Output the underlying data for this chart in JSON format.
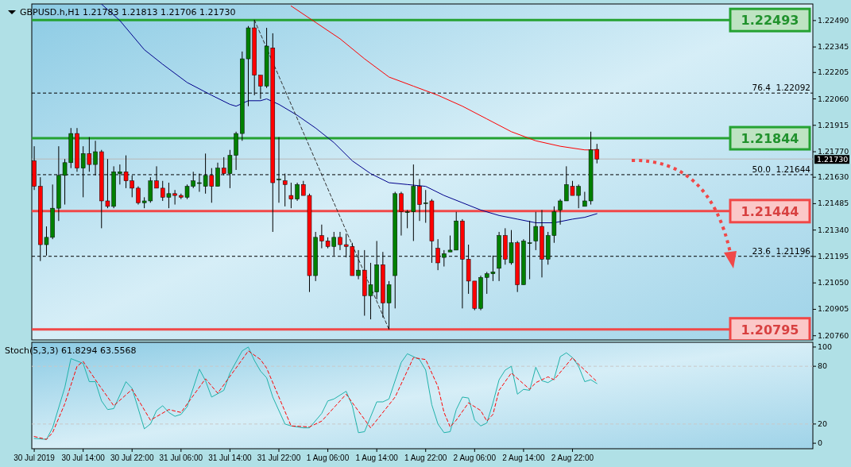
{
  "chart_data": [
    {
      "type": "candlestick",
      "title": "GBPUSD.h,H1  1.21783 1.21813 1.21706 1.21730",
      "tick_labels": "y",
      "x": [
        "2019-07-30T06:00",
        "2019-07-30T07:00",
        "2019-07-30T08:00",
        "2019-07-30T09:00",
        "2019-07-30T10:00",
        "2019-07-30T11:00",
        "2019-07-30T12:00",
        "2019-07-30T13:00",
        "2019-07-30T14:00",
        "2019-07-30T15:00",
        "2019-07-30T16:00",
        "2019-07-30T17:00",
        "2019-07-30T18:00",
        "2019-07-30T19:00",
        "2019-07-30T20:00",
        "2019-07-30T21:00",
        "2019-07-30T22:00",
        "2019-07-30T23:00",
        "2019-07-31T00:00",
        "2019-07-31T01:00",
        "2019-07-31T02:00",
        "2019-07-31T03:00",
        "2019-07-31T04:00",
        "2019-07-31T05:00",
        "2019-07-31T06:00",
        "2019-07-31T07:00",
        "2019-07-31T08:00",
        "2019-07-31T09:00",
        "2019-07-31T10:00",
        "2019-07-31T11:00",
        "2019-07-31T12:00",
        "2019-07-31T13:00",
        "2019-07-31T14:00",
        "2019-07-31T15:00",
        "2019-07-31T16:00",
        "2019-07-31T17:00",
        "2019-07-31T18:00",
        "2019-07-31T19:00",
        "2019-07-31T20:00",
        "2019-07-31T21:00",
        "2019-07-31T22:00",
        "2019-07-31T23:00",
        "2019-08-01T00:00",
        "2019-08-01T01:00",
        "2019-08-01T02:00",
        "2019-08-01T03:00",
        "2019-08-01T04:00",
        "2019-08-01T05:00",
        "2019-08-01T06:00",
        "2019-08-01T07:00",
        "2019-08-01T08:00",
        "2019-08-01T09:00",
        "2019-08-01T10:00",
        "2019-08-01T11:00",
        "2019-08-01T12:00",
        "2019-08-01T13:00",
        "2019-08-01T14:00",
        "2019-08-01T15:00",
        "2019-08-01T16:00",
        "2019-08-01T17:00",
        "2019-08-01T18:00",
        "2019-08-01T19:00",
        "2019-08-01T20:00",
        "2019-08-01T21:00",
        "2019-08-01T22:00",
        "2019-08-01T23:00",
        "2019-08-02T00:00",
        "2019-08-02T01:00",
        "2019-08-02T02:00",
        "2019-08-02T03:00",
        "2019-08-02T04:00",
        "2019-08-02T05:00",
        "2019-08-02T06:00",
        "2019-08-02T07:00",
        "2019-08-02T08:00",
        "2019-08-02T09:00",
        "2019-08-02T10:00",
        "2019-08-02T11:00",
        "2019-08-02T12:00",
        "2019-08-02T13:00",
        "2019-08-02T14:00",
        "2019-08-02T15:00",
        "2019-08-02T16:00",
        "2019-08-02T17:00",
        "2019-08-02T18:00",
        "2019-08-02T19:00",
        "2019-08-02T20:00",
        "2019-08-02T21:00",
        "2019-08-02T22:00",
        "2019-08-02T23:00",
        "2019-08-03T00:00",
        "2019-08-03T01:00",
        "2019-08-03T02:00"
      ],
      "ohlc": [
        [
          1.2172,
          1.218,
          1.2156,
          1.2158
        ],
        [
          1.2158,
          1.2163,
          1.2117,
          1.2126
        ],
        [
          1.2126,
          1.2136,
          1.212,
          1.213
        ],
        [
          1.213,
          1.2159,
          1.2129,
          1.2146
        ],
        [
          1.2146,
          1.218,
          1.2139,
          1.2164
        ],
        [
          1.2164,
          1.2173,
          1.2148,
          1.2171
        ],
        [
          1.2171,
          1.219,
          1.2168,
          1.2187
        ],
        [
          1.2187,
          1.219,
          1.2166,
          1.2168
        ],
        [
          1.2168,
          1.218,
          1.2152,
          1.2176
        ],
        [
          1.2176,
          1.2185,
          1.2166,
          1.217
        ],
        [
          1.217,
          1.2183,
          1.2164,
          1.2177
        ],
        [
          1.2177,
          1.2178,
          1.2135,
          1.215
        ],
        [
          1.215,
          1.2173,
          1.2146,
          1.2147
        ],
        [
          1.2147,
          1.2169,
          1.2146,
          1.2166
        ],
        [
          1.2165,
          1.217,
          1.2159,
          1.2166
        ],
        [
          1.2166,
          1.2175,
          1.2157,
          1.2161
        ],
        [
          1.2161,
          1.2164,
          1.2152,
          1.2157
        ],
        [
          1.2157,
          1.2158,
          1.2148,
          1.2149
        ],
        [
          1.2149,
          1.2152,
          1.2146,
          1.215
        ],
        [
          1.215,
          1.2163,
          1.2149,
          1.2161
        ],
        [
          1.2161,
          1.2169,
          1.2157,
          1.2157
        ],
        [
          1.2157,
          1.2161,
          1.215,
          1.2152
        ],
        [
          1.2152,
          1.216,
          1.2146,
          1.2154
        ],
        [
          1.2154,
          1.2156,
          1.2148,
          1.2153
        ],
        [
          1.2153,
          1.2154,
          1.2151,
          1.2152
        ],
        [
          1.2152,
          1.2159,
          1.2151,
          1.2158
        ],
        [
          1.2158,
          1.2166,
          1.2157,
          1.2161
        ],
        [
          1.216,
          1.2165,
          1.2155,
          1.216
        ],
        [
          1.2158,
          1.2176,
          1.2154,
          1.2164
        ],
        [
          1.2164,
          1.2168,
          1.2149,
          1.2158
        ],
        [
          1.2158,
          1.2171,
          1.2158,
          1.2168
        ],
        [
          1.2168,
          1.2174,
          1.2164,
          1.2165
        ],
        [
          1.2165,
          1.2178,
          1.2157,
          1.2175
        ],
        [
          1.2175,
          1.2188,
          1.2167,
          1.2187
        ],
        [
          1.2187,
          1.2232,
          1.2183,
          1.2228
        ],
        [
          1.2228,
          1.2246,
          1.2202,
          1.2245
        ],
        [
          1.2245,
          1.22493,
          1.2208,
          1.2219
        ],
        [
          1.2219,
          1.2219,
          1.2206,
          1.2213
        ],
        [
          1.2213,
          1.2245,
          1.2212,
          1.2235
        ],
        [
          1.2234,
          1.2242,
          1.2133,
          1.216
        ],
        [
          1.2162,
          1.2185,
          1.2149,
          1.2162
        ],
        [
          1.2161,
          1.2165,
          1.2147,
          1.2159
        ],
        [
          1.2153,
          1.216,
          1.2146,
          1.2151
        ],
        [
          1.2151,
          1.216,
          1.215,
          1.2159
        ],
        [
          1.2159,
          1.2161,
          1.2153,
          1.2153
        ],
        [
          1.2153,
          1.2154,
          1.21,
          1.2109
        ],
        [
          1.2109,
          1.2133,
          1.2106,
          1.213
        ],
        [
          1.2131,
          1.2137,
          1.2124,
          1.2128
        ],
        [
          1.2128,
          1.213,
          1.2124,
          1.2125
        ],
        [
          1.2125,
          1.2133,
          1.212,
          1.213
        ],
        [
          1.213,
          1.2133,
          1.2123,
          1.2126
        ],
        [
          1.2126,
          1.2132,
          1.2119,
          1.2125
        ],
        [
          1.2125,
          1.2127,
          1.2109,
          1.2109
        ],
        [
          1.2109,
          1.2123,
          1.2107,
          1.2112
        ],
        [
          1.2112,
          1.2123,
          1.2087,
          1.2098
        ],
        [
          1.2098,
          1.2116,
          1.2085,
          1.2104
        ],
        [
          1.21,
          1.2128,
          1.2096,
          1.2115
        ],
        [
          1.2115,
          1.2122,
          1.2086,
          1.2094
        ],
        [
          1.2094,
          1.2106,
          1.20795,
          1.2104
        ],
        [
          1.2109,
          1.2155,
          1.2091,
          1.2154
        ],
        [
          1.2154,
          1.2155,
          1.2131,
          1.2144
        ],
        [
          1.2144,
          1.2145,
          1.2135,
          1.2144
        ],
        [
          1.2144,
          1.217,
          1.2128,
          1.2158
        ],
        [
          1.2158,
          1.2162,
          1.2139,
          1.2148
        ],
        [
          1.2149,
          1.2156,
          1.2138,
          1.2149
        ],
        [
          1.215,
          1.2151,
          1.2116,
          1.2128
        ],
        [
          1.2124,
          1.2129,
          1.2112,
          1.2116
        ],
        [
          1.2119,
          1.2123,
          1.2114,
          1.2121
        ],
        [
          1.2122,
          1.2131,
          1.2122,
          1.2123
        ],
        [
          1.2123,
          1.2144,
          1.2123,
          1.2139
        ],
        [
          1.2139,
          1.214,
          1.2091,
          1.2118
        ],
        [
          1.2118,
          1.2126,
          1.2099,
          1.2106
        ],
        [
          1.2106,
          1.2106,
          1.209,
          1.2091
        ],
        [
          1.2091,
          1.2109,
          1.209,
          1.2108
        ],
        [
          1.2108,
          1.2111,
          1.2099,
          1.211
        ],
        [
          1.211,
          1.212,
          1.2106,
          1.2111
        ],
        [
          1.2113,
          1.2133,
          1.2106,
          1.2131
        ],
        [
          1.2131,
          1.2135,
          1.2115,
          1.2118
        ],
        [
          1.2116,
          1.2134,
          1.2115,
          1.2127
        ],
        [
          1.2127,
          1.2128,
          1.21,
          1.2104
        ],
        [
          1.2104,
          1.2129,
          1.2104,
          1.2128
        ],
        [
          1.2127,
          1.2139,
          1.2107,
          1.2127
        ],
        [
          1.2128,
          1.2144,
          1.2123,
          1.2136
        ],
        [
          1.2136,
          1.2145,
          1.2108,
          1.2118
        ],
        [
          1.2118,
          1.2133,
          1.2115,
          1.2131
        ],
        [
          1.2131,
          1.2147,
          1.2127,
          1.2144
        ],
        [
          1.2145,
          1.2151,
          1.2137,
          1.215
        ],
        [
          1.215,
          1.2169,
          1.215,
          1.2159
        ],
        [
          1.2158,
          1.2161,
          1.2153,
          1.2153
        ],
        [
          1.2153,
          1.2159,
          1.2146,
          1.2158
        ],
        [
          1.2147,
          1.2155,
          1.2147,
          1.215
        ],
        [
          1.215,
          1.2188,
          1.2148,
          1.2178
        ],
        [
          1.21783,
          1.21813,
          1.21706,
          1.2173
        ]
      ],
      "series": [
        {
          "type": "line",
          "color": "#00008b",
          "x": [
            "2019-07-30T17:00",
            "2019-07-30T20:00",
            "2019-07-31T00:00",
            "2019-07-31T03:00",
            "2019-07-31T07:00",
            "2019-07-31T11:00",
            "2019-07-31T14:00",
            "2019-07-31T15:00",
            "2019-07-31T17:00",
            "2019-07-31T19:00",
            "2019-07-31T20:00",
            "2019-07-31T22:00",
            "2019-08-01T01:00",
            "2019-08-01T04:00",
            "2019-08-01T07:00",
            "2019-08-01T10:00",
            "2019-08-01T13:00",
            "2019-08-01T16:00",
            "2019-08-01T19:00",
            "2019-08-01T22:00",
            "2019-08-02T01:00",
            "2019-08-02T04:00",
            "2019-08-02T07:00",
            "2019-08-02T10:00",
            "2019-08-02T13:00",
            "2019-08-02T16:00",
            "2019-08-02T19:00",
            "2019-08-02T22:00",
            "2019-08-03T00:00",
            "2019-08-03T02:00"
          ],
          "values": [
            1.2258,
            1.2249,
            1.2233,
            1.2225,
            1.2215,
            1.2208,
            1.2203,
            1.2202,
            1.2205,
            1.2205,
            1.2206,
            1.2203,
            1.2197,
            1.219,
            1.2182,
            1.2172,
            1.2165,
            1.216,
            1.2159,
            1.2158,
            1.2153,
            1.2149,
            1.2145,
            1.2142,
            1.214,
            1.2138,
            1.2138,
            1.214,
            1.2141,
            1.2143
          ]
        },
        {
          "type": "line",
          "color": "#ff0000",
          "x": [
            "2019-08-01T00:00",
            "2019-08-01T04:00",
            "2019-08-01T08:00",
            "2019-08-01T12:00",
            "2019-08-01T16:00",
            "2019-08-01T20:00",
            "2019-08-02T00:00",
            "2019-08-02T04:00",
            "2019-08-02T08:00",
            "2019-08-02T12:00",
            "2019-08-02T16:00",
            "2019-08-02T20:00",
            "2019-08-03T00:00",
            "2019-08-03T02:00"
          ],
          "values": [
            1.2257,
            1.2248,
            1.2239,
            1.2228,
            1.2218,
            1.2213,
            1.2208,
            1.2202,
            1.2195,
            1.2188,
            1.2183,
            1.218,
            1.2178,
            1.2178
          ]
        },
        {
          "type": "line",
          "color": "#303030",
          "line_style": "dashed",
          "x": [
            "2019-07-31T18:00",
            "2019-08-01T16:00"
          ],
          "values": [
            1.22493,
            1.20795
          ]
        }
      ],
      "xlim": [
        "2019-07-30T05:36",
        "2019-08-04T13:18"
      ],
      "ylim": [
        1.20737,
        1.22581
      ],
      "yticks": [
        {
          "value": 1.2249,
          "label": "1.22490"
        },
        {
          "value": 1.22345,
          "label": "1.22345"
        },
        {
          "value": 1.22205,
          "label": "1.22205"
        },
        {
          "value": 1.2206,
          "label": "1.22060"
        },
        {
          "value": 1.21915,
          "label": "1.21915"
        },
        {
          "value": 1.2177,
          "label": "1.21770"
        },
        {
          "value": 1.2163,
          "label": "1.21630"
        },
        {
          "value": 1.21485,
          "label": "1.21485"
        },
        {
          "value": 1.2134,
          "label": "1.21340"
        },
        {
          "value": 1.21195,
          "label": "1.21195"
        },
        {
          "value": 1.2105,
          "label": "1.21050"
        },
        {
          "value": 1.20905,
          "label": "1.20905"
        },
        {
          "value": 1.2076,
          "label": "1.20760"
        }
      ],
      "ref_lines": [
        {
          "axis": "y",
          "value": 1.2173,
          "color": "#b8b8b8",
          "line_style": "solid"
        },
        {
          "axis": "y",
          "value": 1.22092,
          "label": "76.4  1.22092",
          "color": "#000000",
          "line_style": "dashed"
        },
        {
          "axis": "y",
          "value": 1.21644,
          "label": "50.0  1.21644",
          "color": "#000000",
          "line_style": "dashed"
        },
        {
          "axis": "y",
          "value": 1.21196,
          "label": "23.6  1.21196",
          "color": "#000000",
          "line_style": "dashed"
        },
        {
          "axis": "y",
          "value": 1.22493,
          "label": "1.22493",
          "color": "#25a232",
          "line_style": "solid"
        },
        {
          "axis": "y",
          "value": 1.21844,
          "label": "1.21844",
          "color": "#25a232",
          "line_style": "solid"
        },
        {
          "axis": "y",
          "value": 1.21444,
          "label": "1.21444",
          "color": "#f04848",
          "line_style": "solid"
        },
        {
          "axis": "y",
          "value": 1.20795,
          "label": "1.20795",
          "color": "#f04848",
          "line_style": "solid"
        }
      ],
      "annotations": [
        "1.21730"
      ]
    },
    {
      "type": "line",
      "title": "Stoch(5,3,3) 61.8294 63.5568",
      "series": [
        {
          "color": "#20b2aa",
          "x": [
            "2019-07-30T06:00",
            "2019-07-30T08:00",
            "2019-07-30T09:00",
            "2019-07-30T11:00",
            "2019-07-30T12:00",
            "2019-07-30T14:00",
            "2019-07-30T15:00",
            "2019-07-30T16:00",
            "2019-07-30T17:00",
            "2019-07-30T18:00",
            "2019-07-30T19:00",
            "2019-07-30T21:00",
            "2019-07-30T22:00",
            "2019-07-31T00:00",
            "2019-07-31T01:00",
            "2019-07-31T02:00",
            "2019-07-31T03:00",
            "2019-07-31T04:00",
            "2019-07-31T05:00",
            "2019-07-31T06:00",
            "2019-07-31T07:00",
            "2019-07-31T09:00",
            "2019-07-31T10:00",
            "2019-07-31T11:00",
            "2019-07-31T13:00",
            "2019-07-31T14:00",
            "2019-07-31T16:00",
            "2019-07-31T17:00",
            "2019-07-31T18:00",
            "2019-07-31T19:00",
            "2019-07-31T20:00",
            "2019-07-31T21:00",
            "2019-07-31T23:00",
            "2019-08-01T00:00",
            "2019-08-01T02:00",
            "2019-08-01T03:00",
            "2019-08-01T05:00",
            "2019-08-01T06:00",
            "2019-08-01T07:00",
            "2019-08-01T09:00",
            "2019-08-01T10:00",
            "2019-08-01T11:00",
            "2019-08-01T12:00",
            "2019-08-01T14:00",
            "2019-08-01T15:00",
            "2019-08-01T16:00",
            "2019-08-01T18:00",
            "2019-08-01T19:00",
            "2019-08-01T21:00",
            "2019-08-01T22:00",
            "2019-08-01T23:00",
            "2019-08-02T00:00",
            "2019-08-02T01:00",
            "2019-08-02T02:00",
            "2019-08-02T03:00",
            "2019-08-02T04:00",
            "2019-08-02T05:00",
            "2019-08-02T06:00",
            "2019-08-02T07:00",
            "2019-08-02T08:00",
            "2019-08-02T09:00",
            "2019-08-02T10:00",
            "2019-08-02T11:00",
            "2019-08-02T12:00",
            "2019-08-02T13:00",
            "2019-08-02T14:00",
            "2019-08-02T15:00",
            "2019-08-02T16:00",
            "2019-08-02T17:00",
            "2019-08-02T18:00",
            "2019-08-02T19:00",
            "2019-08-02T20:00",
            "2019-08-02T21:00",
            "2019-08-02T22:00",
            "2019-08-02T23:00",
            "2019-08-03T00:00",
            "2019-08-03T01:00",
            "2019-08-03T02:00"
          ],
          "values": [
            5,
            4,
            16,
            58,
            88,
            83,
            64,
            64,
            44,
            35,
            36,
            64,
            57,
            15,
            20,
            34,
            39,
            32,
            28,
            30,
            38,
            77,
            65,
            48,
            55,
            73,
            96,
            100,
            86,
            75,
            68,
            48,
            20,
            18,
            16,
            16,
            31,
            44,
            46,
            54,
            39,
            11,
            12,
            43,
            43,
            46,
            84,
            93,
            87,
            76,
            40,
            20,
            11,
            12,
            35,
            48,
            47,
            24,
            18,
            21,
            42,
            66,
            76,
            80,
            51,
            56,
            55,
            79,
            65,
            63,
            67,
            90,
            94,
            89,
            80,
            64,
            66,
            62
          ]
        },
        {
          "color": "#ff0000",
          "line_style": "dashed",
          "x": [
            "2019-07-30T06:00",
            "2019-07-30T08:00",
            "2019-07-30T09:00",
            "2019-07-30T11:00",
            "2019-07-30T13:00",
            "2019-07-30T14:00",
            "2019-07-30T16:00",
            "2019-07-30T19:00",
            "2019-07-30T22:00",
            "2019-07-31T01:00",
            "2019-07-31T04:00",
            "2019-07-31T06:00",
            "2019-07-31T10:00",
            "2019-07-31T12:00",
            "2019-07-31T16:00",
            "2019-07-31T17:00",
            "2019-07-31T19:00",
            "2019-07-31T20:00",
            "2019-07-31T22:00",
            "2019-08-01T00:00",
            "2019-08-01T03:00",
            "2019-08-01T05:00",
            "2019-08-01T09:00",
            "2019-08-01T13:00",
            "2019-08-01T17:00",
            "2019-08-01T20:00",
            "2019-08-01T22:00",
            "2019-08-02T00:00",
            "2019-08-02T01:00",
            "2019-08-02T02:00",
            "2019-08-02T03:00",
            "2019-08-02T05:00",
            "2019-08-02T07:00",
            "2019-08-02T08:00",
            "2019-08-02T09:00",
            "2019-08-02T10:00",
            "2019-08-02T12:00",
            "2019-08-02T15:00",
            "2019-08-02T16:00",
            "2019-08-02T18:00",
            "2019-08-02T19:00",
            "2019-08-02T22:00",
            "2019-08-02T23:00",
            "2019-08-03T02:00"
          ],
          "values": [
            7,
            4,
            11,
            41,
            80,
            85,
            66,
            39,
            56,
            24,
            35,
            32,
            67,
            52,
            87,
            96,
            87,
            78,
            48,
            18,
            17,
            23,
            51,
            16,
            48,
            89,
            87,
            59,
            32,
            17,
            24,
            42,
            34,
            23,
            30,
            55,
            73,
            56,
            63,
            69,
            66,
            89,
            82,
            64
          ]
        }
      ],
      "xlim": [
        "2019-07-30T05:36",
        "2019-08-04T13:18"
      ],
      "ylim": [
        -5.7,
        104.9
      ],
      "yticks": [
        0,
        20,
        80,
        100
      ],
      "xticks": [
        {
          "value": "2019-07-30T06:00",
          "label": "30 Jul 2019"
        },
        {
          "value": "2019-07-30T14:00",
          "label": "30 Jul 14:00"
        },
        {
          "value": "2019-07-30T22:00",
          "label": "30 Jul 22:00"
        },
        {
          "value": "2019-07-31T06:00",
          "label": "31 Jul 06:00"
        },
        {
          "value": "2019-07-31T14:00",
          "label": "31 Jul 14:00"
        },
        {
          "value": "2019-07-31T22:00",
          "label": "31 Jul 22:00"
        },
        {
          "value": "2019-08-01T06:00",
          "label": "1 Aug 06:00"
        },
        {
          "value": "2019-08-01T14:00",
          "label": "1 Aug 14:00"
        },
        {
          "value": "2019-08-01T22:00",
          "label": "1 Aug 22:00"
        },
        {
          "value": "2019-08-02T06:00",
          "label": "2 Aug 06:00"
        },
        {
          "value": "2019-08-02T14:00",
          "label": "2 Aug 14:00"
        },
        {
          "value": "2019-08-02T22:00",
          "label": "2 Aug 22:00"
        }
      ],
      "ref_lines": [
        {
          "axis": "y",
          "value": 80,
          "color": "#c8c8c8",
          "line_style": "dashed"
        },
        {
          "axis": "y",
          "value": 20,
          "color": "#c8c8c8",
          "line_style": "dashed"
        }
      ]
    }
  ]
}
